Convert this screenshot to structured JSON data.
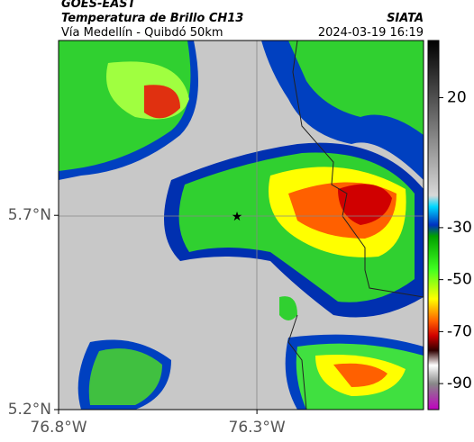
{
  "header": {
    "satellite": "GOES-EAST",
    "product": "Temperatura de Brillo CH13",
    "source": "SIATA",
    "route": "Vía Medellín - Quibdó 50km",
    "timestamp": "2024-03-19 16:19"
  },
  "map": {
    "xlim": [
      -76.8,
      -75.88
    ],
    "ylim": [
      5.2,
      6.15
    ],
    "xticks": [
      {
        "value": -76.8,
        "label": "76.8°W"
      },
      {
        "value": -76.3,
        "label": "76.3°W"
      }
    ],
    "yticks": [
      {
        "value": 5.7,
        "label": "5.7°N"
      },
      {
        "value": 5.2,
        "label": "5.2°N"
      }
    ]
  },
  "colorbar": {
    "ylim": [
      -100,
      42
    ],
    "yticks": [
      20,
      -30,
      -50,
      -70,
      -90
    ]
  }
}
